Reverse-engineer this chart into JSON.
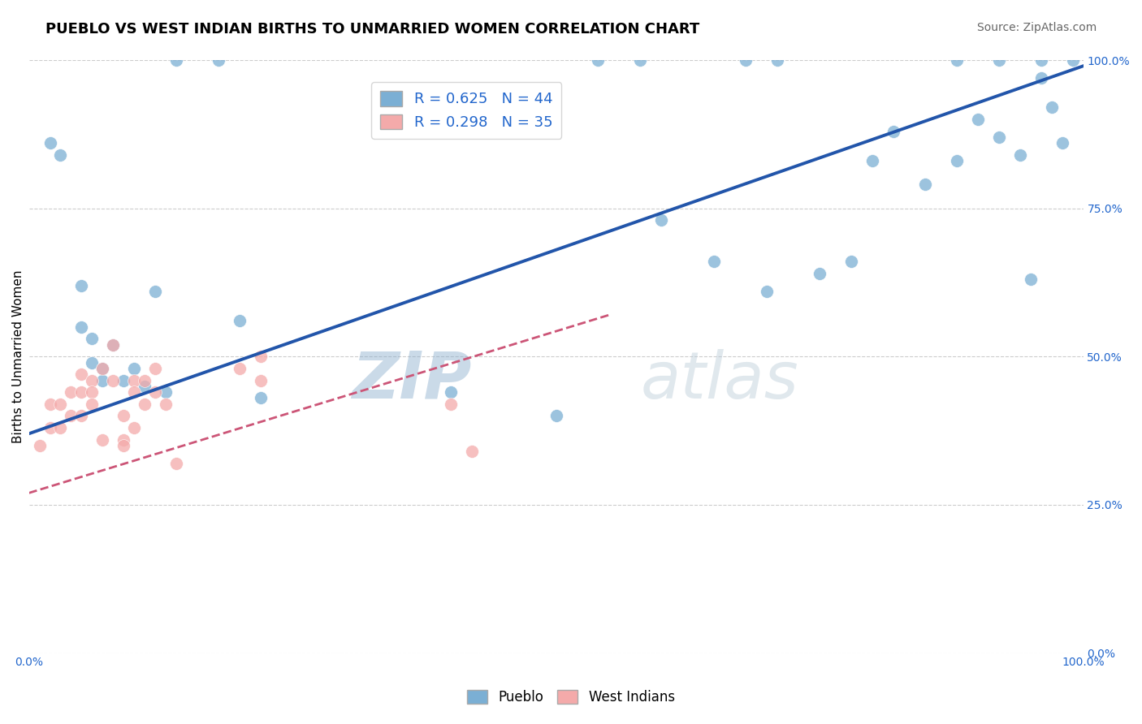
{
  "title": "PUEBLO VS WEST INDIAN BIRTHS TO UNMARRIED WOMEN CORRELATION CHART",
  "source": "Source: ZipAtlas.com",
  "ylabel": "Births to Unmarried Women",
  "xlim": [
    0,
    1
  ],
  "ylim": [
    0,
    1
  ],
  "ytick_labels_right": [
    "0.0%",
    "25.0%",
    "50.0%",
    "75.0%",
    "100.0%"
  ],
  "ytick_vals_right": [
    0.0,
    0.25,
    0.5,
    0.75,
    1.0
  ],
  "watermark_zip": "ZIP",
  "watermark_atlas": "atlas",
  "pueblo_R": 0.625,
  "pueblo_N": 44,
  "westindian_R": 0.298,
  "westindian_N": 35,
  "pueblo_color": "#7BAFD4",
  "westindian_color": "#F4AAAA",
  "pueblo_line_color": "#2255AA",
  "westindian_line_color": "#CC5577",
  "grid_color": "#CCCCCC",
  "background_color": "#FFFFFF",
  "pueblo_x": [
    0.02,
    0.03,
    0.05,
    0.05,
    0.06,
    0.06,
    0.07,
    0.07,
    0.08,
    0.09,
    0.1,
    0.11,
    0.12,
    0.13,
    0.2,
    0.22,
    0.4,
    0.5,
    0.6,
    0.65,
    0.7,
    0.75,
    0.78,
    0.8,
    0.82,
    0.85,
    0.88,
    0.9,
    0.92,
    0.94,
    0.95,
    0.96,
    0.97,
    0.98
  ],
  "pueblo_y": [
    0.86,
    0.84,
    0.62,
    0.55,
    0.53,
    0.49,
    0.48,
    0.46,
    0.52,
    0.46,
    0.48,
    0.45,
    0.61,
    0.44,
    0.56,
    0.43,
    0.44,
    0.4,
    0.73,
    0.66,
    0.61,
    0.64,
    0.66,
    0.83,
    0.88,
    0.79,
    0.83,
    0.9,
    0.87,
    0.84,
    0.63,
    0.97,
    0.92,
    0.86
  ],
  "pueblo_top_x": [
    0.14,
    0.18,
    0.54,
    0.58,
    0.68,
    0.71,
    0.88,
    0.92,
    0.96,
    0.99
  ],
  "pueblo_top_y": [
    1.0,
    1.0,
    1.0,
    1.0,
    1.0,
    1.0,
    1.0,
    1.0,
    1.0,
    1.0
  ],
  "westindian_x": [
    0.01,
    0.02,
    0.02,
    0.03,
    0.03,
    0.04,
    0.04,
    0.05,
    0.05,
    0.05,
    0.06,
    0.06,
    0.06,
    0.07,
    0.07,
    0.08,
    0.08,
    0.09,
    0.09,
    0.09,
    0.1,
    0.1,
    0.1,
    0.11,
    0.11,
    0.12,
    0.12,
    0.13,
    0.14,
    0.2,
    0.22,
    0.22,
    0.4,
    0.42
  ],
  "westindian_y": [
    0.35,
    0.42,
    0.38,
    0.42,
    0.38,
    0.44,
    0.4,
    0.47,
    0.44,
    0.4,
    0.46,
    0.44,
    0.42,
    0.48,
    0.36,
    0.52,
    0.46,
    0.4,
    0.36,
    0.35,
    0.46,
    0.44,
    0.38,
    0.46,
    0.42,
    0.48,
    0.44,
    0.42,
    0.32,
    0.48,
    0.5,
    0.46,
    0.42,
    0.34
  ],
  "pueblo_trendline_x": [
    0.0,
    1.0
  ],
  "pueblo_trendline_y": [
    0.37,
    0.99
  ],
  "westindian_trendline_x": [
    0.0,
    0.55
  ],
  "westindian_trendline_y": [
    0.27,
    0.57
  ],
  "title_fontsize": 13,
  "source_fontsize": 10,
  "label_fontsize": 11,
  "legend_fontsize": 13,
  "watermark_fontsize": 58
}
